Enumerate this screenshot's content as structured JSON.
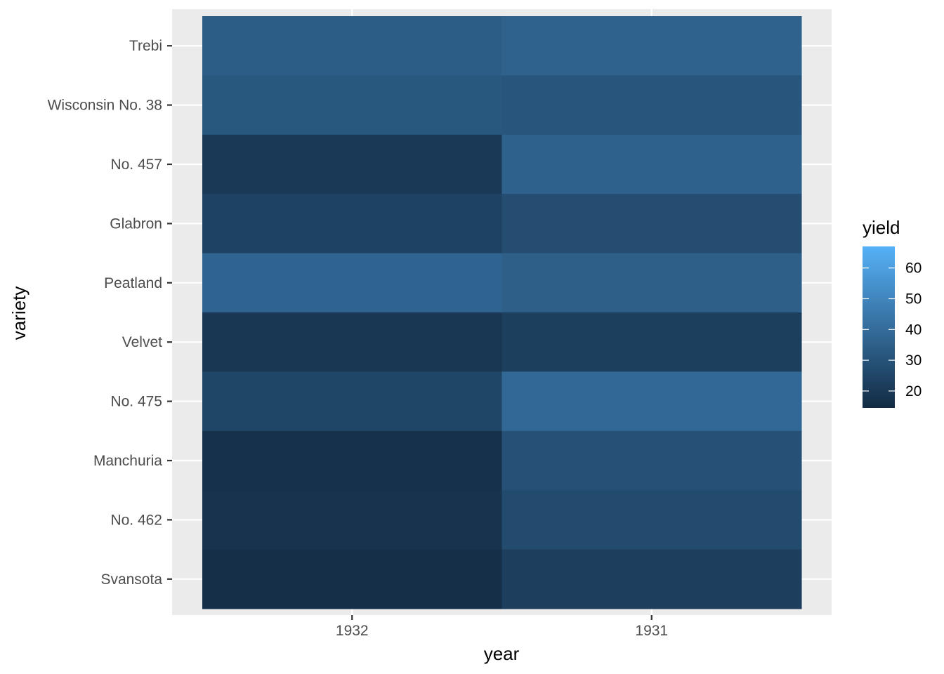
{
  "chart_data": {
    "type": "heatmap",
    "title": "",
    "xlabel": "year",
    "ylabel": "variety",
    "x_categories": [
      "1932",
      "1931"
    ],
    "y_categories": [
      "Trebi",
      "Wisconsin No. 38",
      "No. 457",
      "Glabron",
      "Peatland",
      "Velvet",
      "No. 475",
      "Manchuria",
      "No. 462",
      "Svansota"
    ],
    "values": [
      {
        "variety": "Trebi",
        "1932": 34.0,
        "1931": 36.5
      },
      {
        "variety": "Wisconsin No. 38",
        "1932": 32.0,
        "1931": 31.0
      },
      {
        "variety": "No. 457",
        "1932": 20.0,
        "1931": 36.0
      },
      {
        "variety": "Glabron",
        "1932": 23.5,
        "1931": 28.0
      },
      {
        "variety": "Peatland",
        "1932": 37.0,
        "1931": 35.0
      },
      {
        "variety": "Velvet",
        "1932": 19.0,
        "1931": 22.5
      },
      {
        "variety": "No. 475",
        "1932": 25.0,
        "1931": 38.5
      },
      {
        "variety": "Manchuria",
        "1932": 17.0,
        "1931": 29.0
      },
      {
        "variety": "No. 462",
        "1932": 17.5,
        "1931": 27.0
      },
      {
        "variety": "Svansota",
        "1932": 16.0,
        "1931": 22.0
      }
    ],
    "color_scale": {
      "low_color": "#132B43",
      "high_color": "#56B1F7",
      "limits": [
        14.5,
        67
      ],
      "breaks": [
        20,
        30,
        40,
        50,
        60
      ]
    },
    "legend": {
      "title": "yield",
      "position": "right"
    },
    "grid": true,
    "panel_background": "#EBEBEB"
  }
}
